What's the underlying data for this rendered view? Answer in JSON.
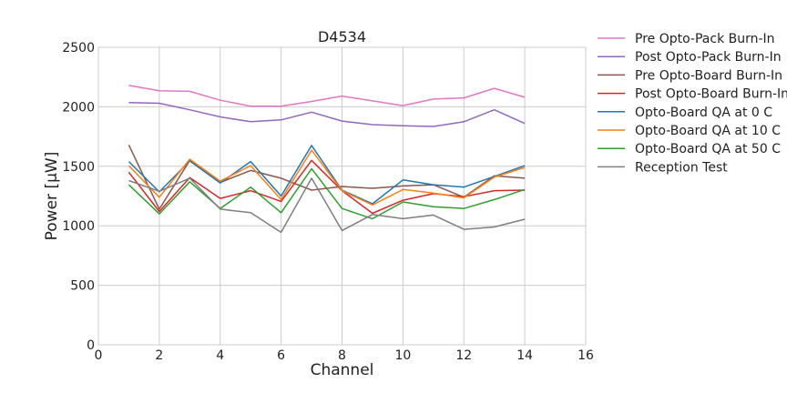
{
  "chart_data": {
    "type": "line",
    "title": "D4534",
    "xlabel": "Channel",
    "ylabel": "Power [μW]",
    "xlim": [
      0,
      16
    ],
    "ylim": [
      0,
      2500
    ],
    "xticks": [
      0,
      2,
      4,
      6,
      8,
      10,
      12,
      14,
      16
    ],
    "yticks": [
      0,
      500,
      1000,
      1500,
      2000,
      2500
    ],
    "grid": true,
    "legend_position": "outside-top-right",
    "x": [
      1,
      2,
      3,
      4,
      5,
      6,
      7,
      8,
      9,
      10,
      11,
      12,
      13,
      14
    ],
    "series": [
      {
        "name": "Pre Opto-Pack Burn-In",
        "color": "#e377c2",
        "values": [
          2180,
          2135,
          2130,
          2055,
          2005,
          2005,
          2045,
          2090,
          2050,
          2010,
          2065,
          2075,
          2155,
          2080
        ]
      },
      {
        "name": "Post Opto-Pack Burn-In",
        "color": "#9467bd",
        "values": [
          2035,
          2030,
          1975,
          1915,
          1875,
          1890,
          1955,
          1880,
          1850,
          1840,
          1835,
          1875,
          1975,
          1860
        ]
      },
      {
        "name": "Pre Opto-Board Burn-In",
        "color": "#8c564b",
        "values": [
          1680,
          1140,
          1550,
          1365,
          1465,
          1400,
          1300,
          1330,
          1315,
          1335,
          1345,
          1240,
          1420,
          1400
        ]
      },
      {
        "name": "Post Opto-Board Burn-In",
        "color": "#d62728",
        "values": [
          1450,
          1120,
          1405,
          1230,
          1295,
          1205,
          1550,
          1295,
          1105,
          1215,
          1270,
          1245,
          1295,
          1300
        ]
      },
      {
        "name": "Opto-Board QA at 0 C",
        "color": "#1f77b4",
        "values": [
          1540,
          1285,
          1545,
          1360,
          1540,
          1250,
          1675,
          1300,
          1185,
          1385,
          1345,
          1325,
          1415,
          1505
        ]
      },
      {
        "name": "Opto-Board QA at 10 C",
        "color": "#ff7f0e",
        "values": [
          1505,
          1240,
          1560,
          1375,
          1505,
          1220,
          1635,
          1295,
          1175,
          1305,
          1275,
          1235,
          1410,
          1490
        ]
      },
      {
        "name": "Opto-Board QA at 50 C",
        "color": "#2ca02c",
        "values": [
          1345,
          1100,
          1370,
          1145,
          1325,
          1110,
          1480,
          1145,
          1060,
          1200,
          1160,
          1145,
          1220,
          1305
        ]
      },
      {
        "name": "Reception Test",
        "color": "#7f7f7f",
        "values": [
          1380,
          1290,
          1400,
          1140,
          1110,
          945,
          1400,
          960,
          1095,
          1060,
          1090,
          970,
          990,
          1055
        ]
      }
    ]
  }
}
